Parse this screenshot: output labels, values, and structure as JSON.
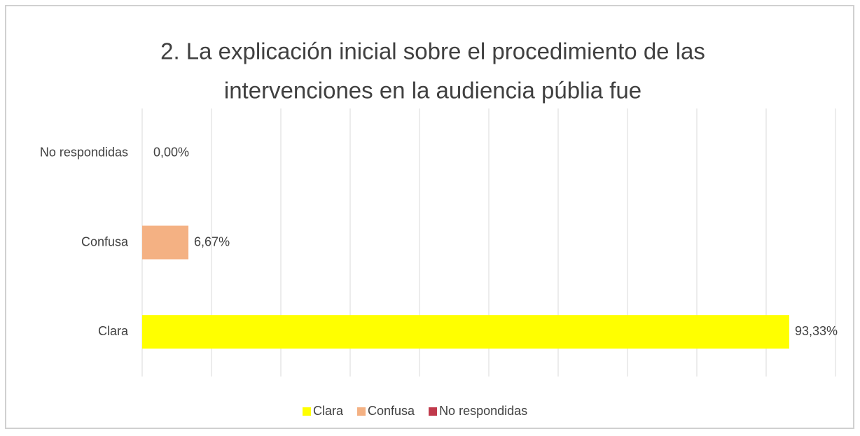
{
  "chart_data": {
    "type": "bar",
    "orientation": "horizontal",
    "title": [
      "2. La explicación inicial sobre el procedimiento de las",
      "intervenciones en la audiencia públia fue"
    ],
    "categories": [
      "Clara",
      "Confusa",
      "No respondidas"
    ],
    "values": [
      93.33,
      6.67,
      0
    ],
    "value_labels": [
      "93,33%",
      "6,67%",
      "0,00%"
    ],
    "colors": [
      "#ffff00",
      "#f4b183",
      "#c0394b"
    ],
    "xlim": [
      0,
      100
    ],
    "xticks": [
      0,
      10,
      20,
      30,
      40,
      50,
      60,
      70,
      80,
      90,
      100
    ],
    "grid": true,
    "legend": "bottom"
  }
}
